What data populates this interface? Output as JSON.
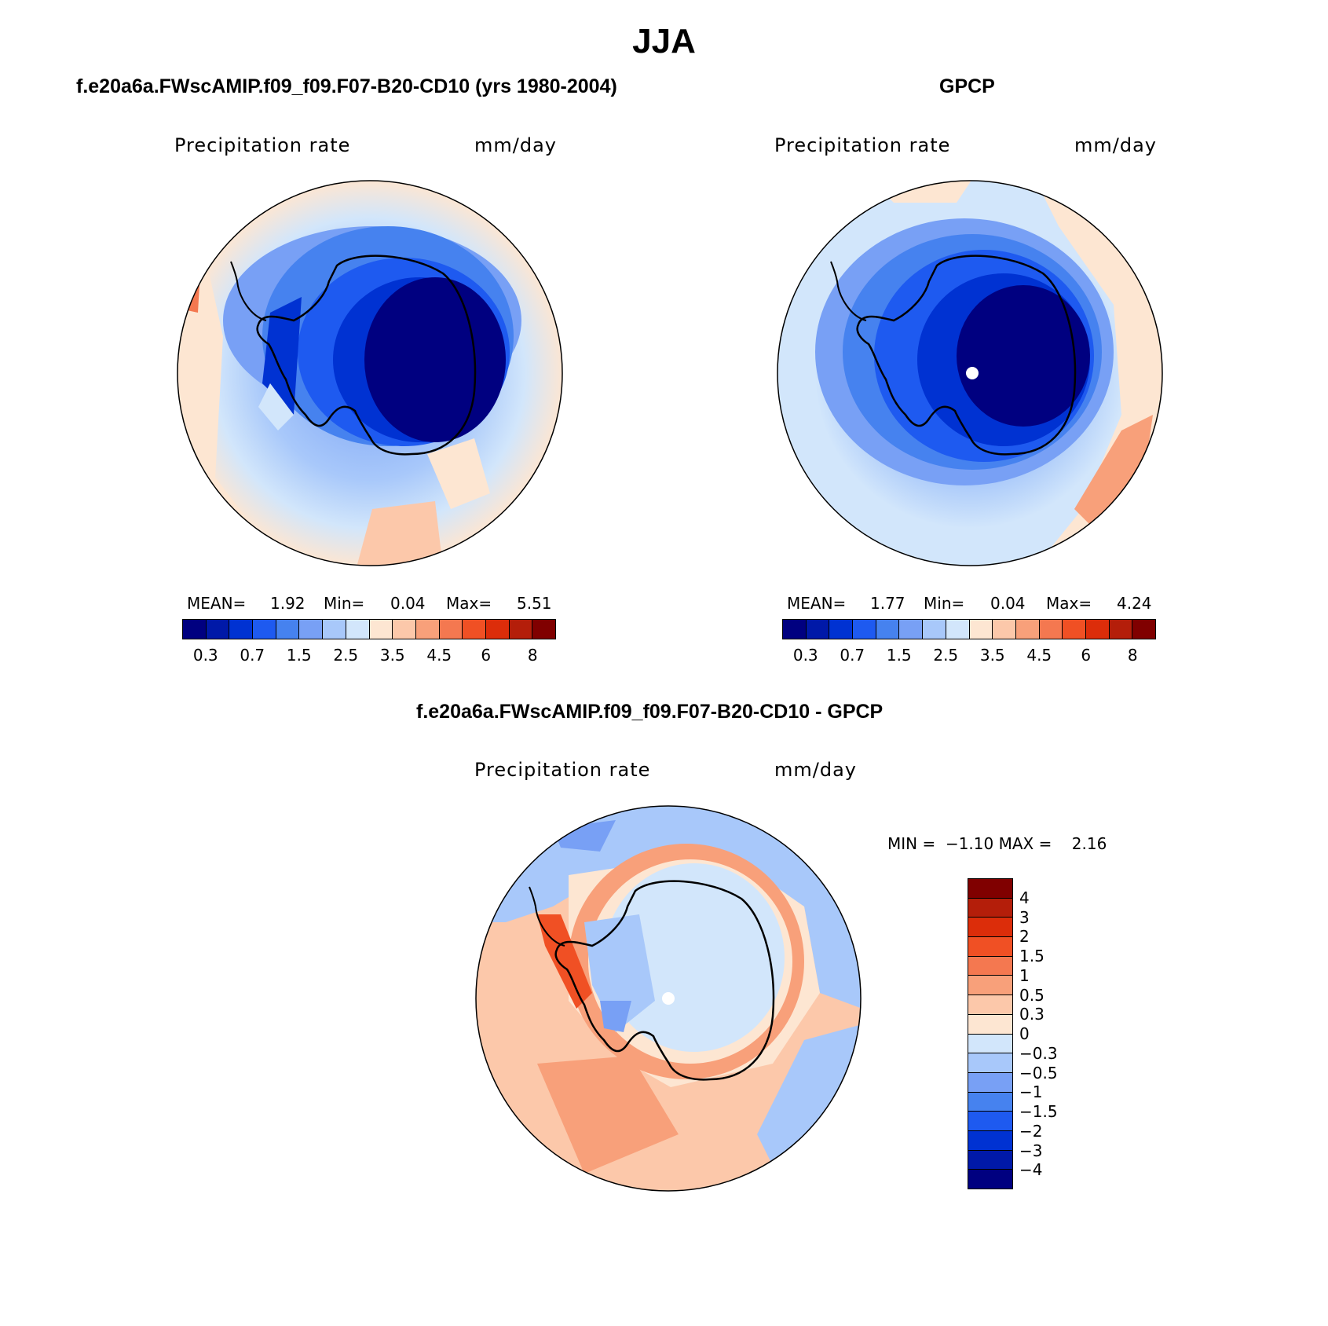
{
  "title": "JJA",
  "colors": {
    "blues": [
      "#000080",
      "#0019a8",
      "#0032d2",
      "#1e5af0",
      "#4682ef",
      "#78a0f5",
      "#a8c8fa",
      "#d2e6fb"
    ],
    "reds": [
      "#fde6d2",
      "#fcc8aa",
      "#f8a07a",
      "#f47850",
      "#f05024",
      "#dc2d0a",
      "#b41e0a",
      "#800000"
    ],
    "land_outline": "#000000"
  },
  "panels": [
    {
      "id": "model",
      "title": "f.e20a6a.FWscAMIP.f09_f09.F07-B20-CD10 (yrs 1980-2004)",
      "variable": "Precipitation rate",
      "units": "mm/day",
      "stats": {
        "mean_label": "MEAN=",
        "mean": "1.92",
        "min_label": "Min=",
        "min": "0.04",
        "max_label": "Max=",
        "max": "5.51"
      }
    },
    {
      "id": "obs",
      "title": "GPCP",
      "variable": "Precipitation rate",
      "units": "mm/day",
      "stats": {
        "mean_label": "MEAN=",
        "mean": "1.77",
        "min_label": "Min=",
        "min": "0.04",
        "max_label": "Max=",
        "max": "4.24"
      }
    },
    {
      "id": "diff",
      "title": "f.e20a6a.FWscAMIP.f09_f09.F07-B20-CD10 - GPCP",
      "variable": "Precipitation rate",
      "units": "mm/day",
      "minmax": "MIN =  −1.10 MAX =    2.16"
    }
  ],
  "colorbar_levels": [
    "0.3",
    "0.7",
    "1.5",
    "2.5",
    "3.5",
    "4.5",
    "6",
    "8"
  ],
  "diff_levels": [
    "4",
    "3",
    "2",
    "1.5",
    "1",
    "0.5",
    "0.3",
    "0",
    "−0.3",
    "−0.5",
    "−1",
    "−1.5",
    "−2",
    "−3",
    "−4"
  ],
  "diff_colors": [
    "#800000",
    "#b41e0a",
    "#dc2d0a",
    "#f05024",
    "#f47850",
    "#f8a07a",
    "#fcc8aa",
    "#fde6d2",
    "#d2e6fb",
    "#a8c8fa",
    "#78a0f5",
    "#4682ef",
    "#1e5af0",
    "#0032d2",
    "#0019a8",
    "#000080"
  ]
}
